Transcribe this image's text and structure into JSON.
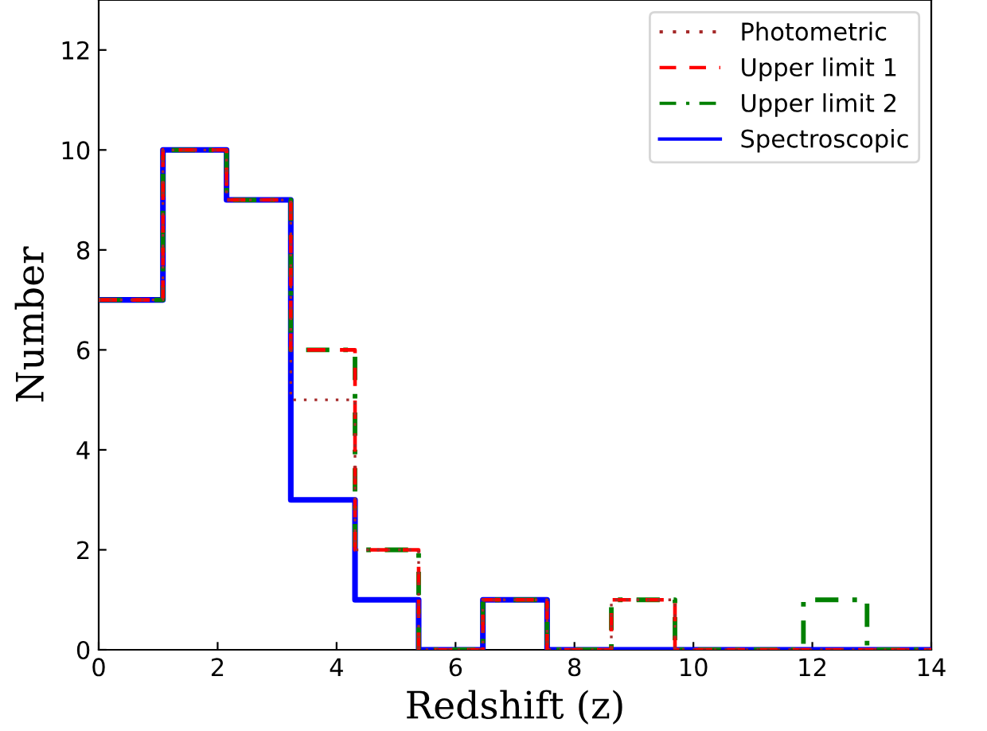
{
  "chart_data": {
    "type": "step",
    "xlabel": "Redshift (z)",
    "ylabel": "Number",
    "x": [
      0,
      1.08,
      2.15,
      3.23,
      4.31,
      5.38,
      6.46,
      7.54,
      8.62,
      9.69,
      10.77,
      11.85,
      12.92,
      14
    ],
    "series": [
      {
        "name": "Photometric",
        "color": "#a52a2a",
        "line_style": "dotted",
        "values": [
          7,
          10,
          9,
          5,
          2,
          0,
          1,
          0,
          1,
          0,
          0,
          0,
          0,
          0
        ]
      },
      {
        "name": "Upper limit 1",
        "color": "#ff0000",
        "line_style": "dashed",
        "values": [
          7,
          10,
          9,
          6,
          2,
          0,
          1,
          0,
          1,
          0,
          0,
          0,
          0,
          0
        ]
      },
      {
        "name": "Upper limit 2",
        "color": "#008000",
        "line_style": "dashdot",
        "values": [
          7,
          10,
          9,
          6,
          2,
          0,
          1,
          0,
          1,
          0,
          0,
          1,
          0,
          0
        ]
      },
      {
        "name": "Spectroscopic",
        "color": "#0000ff",
        "line_style": "solid",
        "values": [
          7,
          10,
          9,
          3,
          1,
          0,
          1,
          0,
          0,
          0,
          0,
          0,
          0,
          0
        ]
      }
    ],
    "xlim": [
      0,
      14
    ],
    "xticks": [
      0,
      2,
      4,
      6,
      8,
      10,
      12,
      14
    ],
    "ylim": [
      0,
      13
    ],
    "yticks": [
      0,
      2,
      4,
      6,
      8,
      10,
      12
    ],
    "grid": false,
    "legend": "top right"
  }
}
